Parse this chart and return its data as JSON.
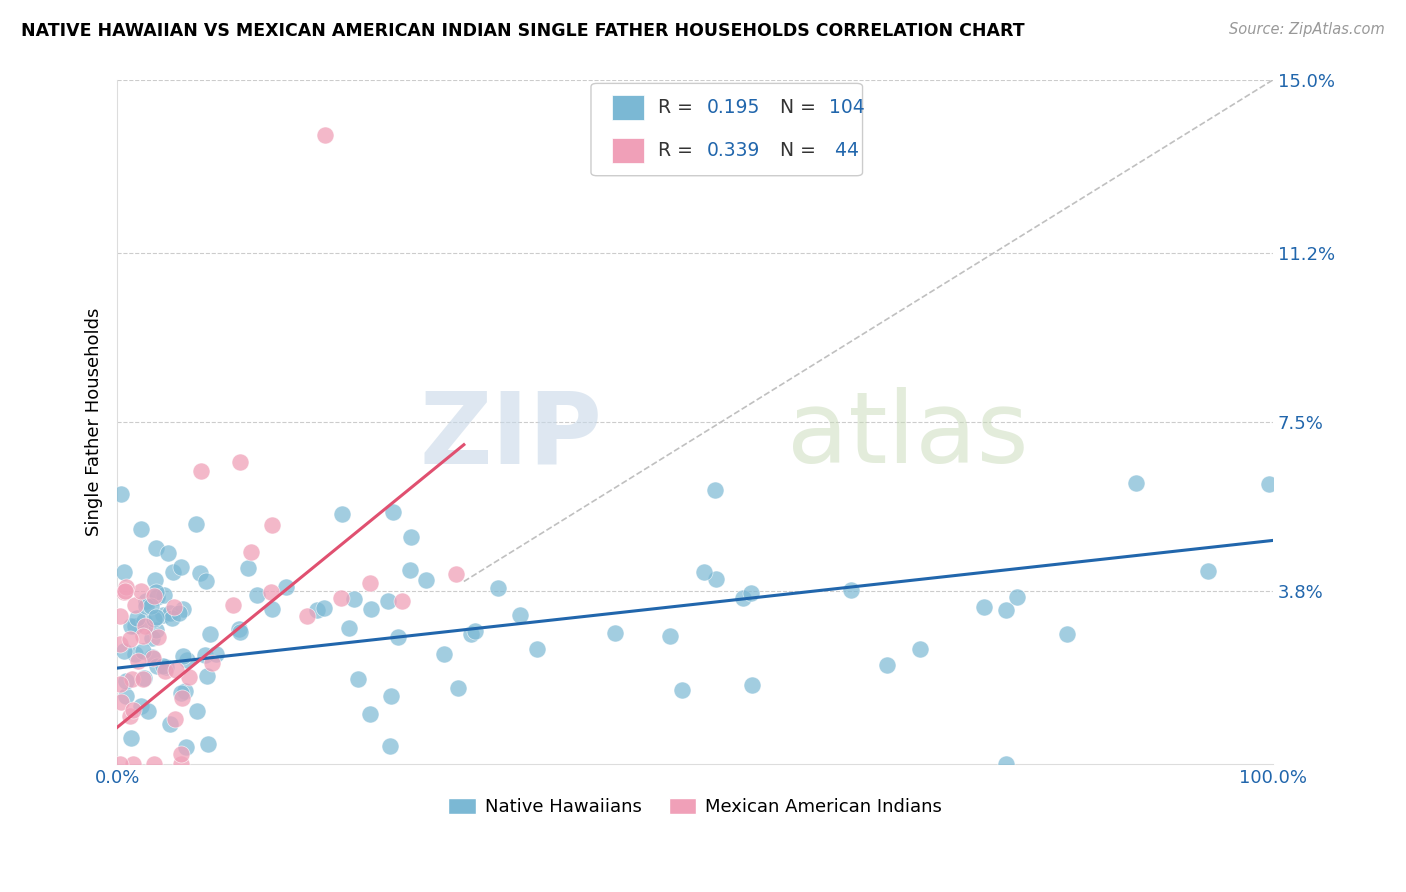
{
  "title": "NATIVE HAWAIIAN VS MEXICAN AMERICAN INDIAN SINGLE FATHER HOUSEHOLDS CORRELATION CHART",
  "source": "Source: ZipAtlas.com",
  "ylabel": "Single Father Households",
  "xlim": [
    0.0,
    100.0
  ],
  "ylim": [
    0.0,
    15.0
  ],
  "x_tick_labels": [
    "0.0%",
    "100.0%"
  ],
  "y_tick_labels": [
    "3.8%",
    "7.5%",
    "11.2%",
    "15.0%"
  ],
  "y_tick_values": [
    3.8,
    7.5,
    11.2,
    15.0
  ],
  "blue_color": "#7bb8d4",
  "pink_color": "#f0a0b8",
  "line_blue": "#2166ac",
  "line_pink": "#e05070",
  "legend_blue_label": "Native Hawaiians",
  "legend_pink_label": "Mexican American Indians",
  "R_blue": 0.195,
  "N_blue": 104,
  "R_pink": 0.339,
  "N_pink": 44,
  "background_color": "#ffffff",
  "grid_color": "#cccccc",
  "blue_trend": [
    0.0,
    100.0,
    2.1,
    4.9
  ],
  "pink_trend": [
    0.0,
    30.0,
    0.8,
    7.0
  ],
  "dash_line": [
    30.0,
    100.0,
    4.0,
    15.0
  ]
}
